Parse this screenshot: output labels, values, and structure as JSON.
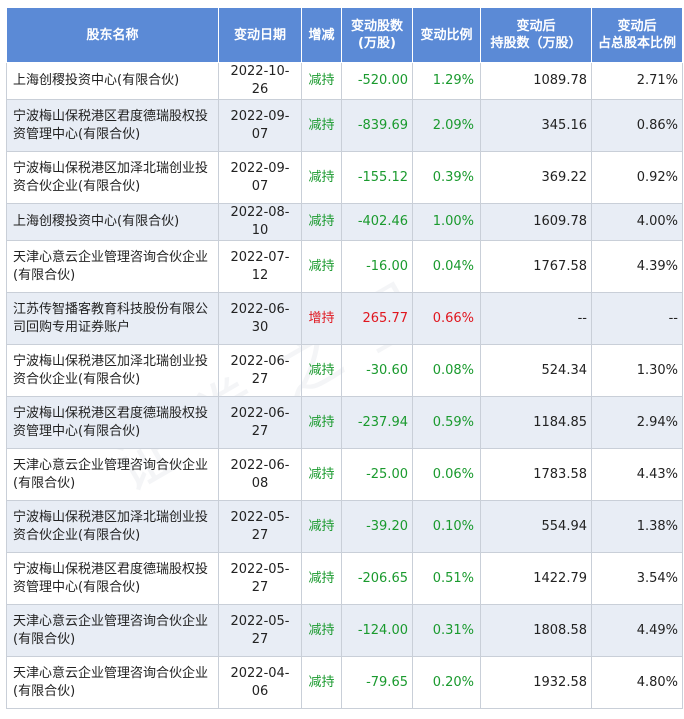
{
  "headers": {
    "name": "股东名称",
    "date": "变动日期",
    "direction": "增减",
    "change_shares_l1": "变动股数",
    "change_shares_l2": "(万股)",
    "change_ratio": "变动比例",
    "after_shares_l1": "变动后",
    "after_shares_l2": "持股数（万股）",
    "after_ratio_l1": "变动后",
    "after_ratio_l2": "占总股本比例"
  },
  "rows": [
    {
      "name": "上海创稷投资中心(有限合伙)",
      "date": "2022-10-26",
      "dir": "减持",
      "change": "-520.00",
      "ratio": "1.29%",
      "after": "1089.78",
      "after_ratio": "2.71%"
    },
    {
      "name": "宁波梅山保税港区君度德瑞股权投资管理中心(有限合伙)",
      "date": "2022-09-07",
      "dir": "减持",
      "change": "-839.69",
      "ratio": "2.09%",
      "after": "345.16",
      "after_ratio": "0.86%"
    },
    {
      "name": "宁波梅山保税港区加泽北瑞创业投资合伙企业(有限合伙)",
      "date": "2022-09-07",
      "dir": "减持",
      "change": "-155.12",
      "ratio": "0.39%",
      "after": "369.22",
      "after_ratio": "0.92%"
    },
    {
      "name": "上海创稷投资中心(有限合伙)",
      "date": "2022-08-10",
      "dir": "减持",
      "change": "-402.46",
      "ratio": "1.00%",
      "after": "1609.78",
      "after_ratio": "4.00%"
    },
    {
      "name": "天津心意云企业管理咨询合伙企业(有限合伙)",
      "date": "2022-07-12",
      "dir": "减持",
      "change": "-16.00",
      "ratio": "0.04%",
      "after": "1767.58",
      "after_ratio": "4.39%"
    },
    {
      "name": "江苏传智播客教育科技股份有限公司回购专用证券账户",
      "date": "2022-06-30",
      "dir": "增持",
      "change": "265.77",
      "ratio": "0.66%",
      "after": "--",
      "after_ratio": "--"
    },
    {
      "name": "宁波梅山保税港区加泽北瑞创业投资合伙企业(有限合伙)",
      "date": "2022-06-27",
      "dir": "减持",
      "change": "-30.60",
      "ratio": "0.08%",
      "after": "524.34",
      "after_ratio": "1.30%"
    },
    {
      "name": "宁波梅山保税港区君度德瑞股权投资管理中心(有限合伙)",
      "date": "2022-06-27",
      "dir": "减持",
      "change": "-237.94",
      "ratio": "0.59%",
      "after": "1184.85",
      "after_ratio": "2.94%"
    },
    {
      "name": "天津心意云企业管理咨询合伙企业(有限合伙)",
      "date": "2022-06-08",
      "dir": "减持",
      "change": "-25.00",
      "ratio": "0.06%",
      "after": "1783.58",
      "after_ratio": "4.43%"
    },
    {
      "name": "宁波梅山保税港区加泽北瑞创业投资合伙企业(有限合伙)",
      "date": "2022-05-27",
      "dir": "减持",
      "change": "-39.20",
      "ratio": "0.10%",
      "after": "554.94",
      "after_ratio": "1.38%"
    },
    {
      "name": "宁波梅山保税港区君度德瑞股权投资管理中心(有限合伙)",
      "date": "2022-05-27",
      "dir": "减持",
      "change": "-206.65",
      "ratio": "0.51%",
      "after": "1422.79",
      "after_ratio": "3.54%"
    },
    {
      "name": "天津心意云企业管理咨询合伙企业(有限合伙)",
      "date": "2022-05-27",
      "dir": "减持",
      "change": "-124.00",
      "ratio": "0.31%",
      "after": "1808.58",
      "after_ratio": "4.49%"
    },
    {
      "name": "天津心意云企业管理咨询合伙企业(有限合伙)",
      "date": "2022-04-06",
      "dir": "减持",
      "change": "-79.65",
      "ratio": "0.20%",
      "after": "1932.58",
      "after_ratio": "4.80%"
    }
  ],
  "watermark": "证券之星",
  "colors": {
    "header_bg": "#5b8ad6",
    "alt_row": "#e8edf5",
    "decrease": "#1a9a2e",
    "increase": "#e0171f"
  }
}
